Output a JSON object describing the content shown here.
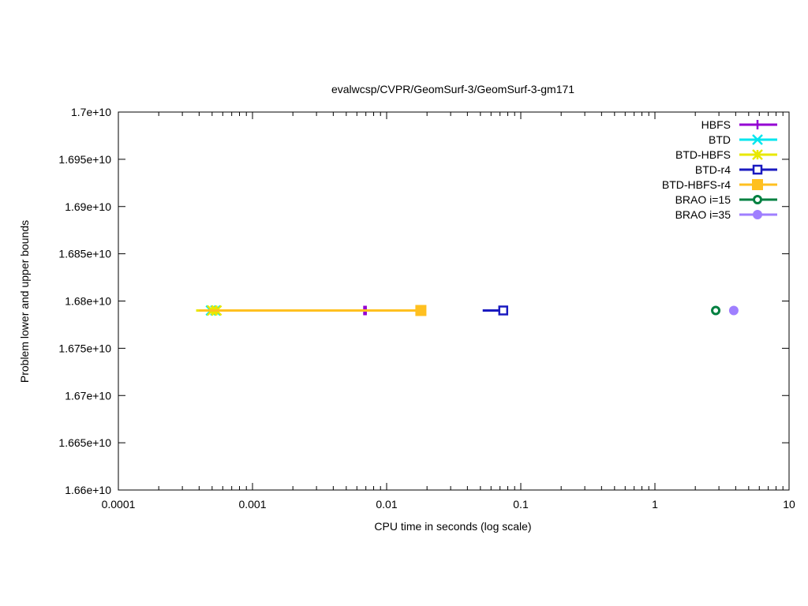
{
  "chart_data": {
    "type": "scatter",
    "title": "evalwcsp/CVPR/GeomSurf-3/GeomSurf-3-gm171",
    "xlabel": "CPU time in seconds (log scale)",
    "ylabel": "Problem lower and upper bounds",
    "xscale": "log",
    "xlim": [
      0.0001,
      10
    ],
    "ylim": [
      16600000000.0,
      17000000000.0
    ],
    "grid": false,
    "legend_placement": "top-right",
    "xticks": [
      {
        "v": 0.0001,
        "label": "0.0001"
      },
      {
        "v": 0.001,
        "label": "0.001"
      },
      {
        "v": 0.01,
        "label": "0.01"
      },
      {
        "v": 0.1,
        "label": "0.1"
      },
      {
        "v": 1,
        "label": "1"
      },
      {
        "v": 10,
        "label": "10"
      }
    ],
    "yticks": [
      {
        "v": 16600000000.0,
        "label": "1.66e+10"
      },
      {
        "v": 16650000000.0,
        "label": "1.665e+10"
      },
      {
        "v": 16700000000.0,
        "label": "1.67e+10"
      },
      {
        "v": 16750000000.0,
        "label": "1.675e+10"
      },
      {
        "v": 16800000000.0,
        "label": "1.68e+10"
      },
      {
        "v": 16850000000.0,
        "label": "1.685e+10"
      },
      {
        "v": 16900000000.0,
        "label": "1.69e+10"
      },
      {
        "v": 16950000000.0,
        "label": "1.695e+10"
      },
      {
        "v": 17000000000.0,
        "label": "1.7e+10"
      }
    ],
    "series": [
      {
        "name": "HBFS",
        "color": "#9400d3",
        "marker": "plus",
        "points": [
          [
            0.0068,
            16790000000.0
          ],
          [
            0.007,
            16790000000.0
          ]
        ],
        "marker_points": [
          [
            0.0068,
            16790000000.0
          ],
          [
            0.007,
            16790000000.0
          ]
        ]
      },
      {
        "name": "BTD",
        "color": "#00e5ee",
        "marker": "cross",
        "points": [
          [
            0.00049,
            16790000000.0
          ],
          [
            0.00053,
            16790000000.0
          ]
        ],
        "marker_points": [
          [
            0.00049,
            16790000000.0
          ],
          [
            0.00053,
            16790000000.0
          ]
        ]
      },
      {
        "name": "BTD-HBFS",
        "color": "#e8e800",
        "marker": "star",
        "points": [
          [
            0.00038,
            16790000000.0
          ],
          [
            0.00052,
            16790000000.0
          ]
        ],
        "marker_points": [
          [
            0.0005,
            16790000000.0
          ],
          [
            0.00054,
            16790000000.0
          ]
        ]
      },
      {
        "name": "BTD-r4",
        "color": "#1a1ac0",
        "marker": "open-square",
        "points": [
          [
            0.052,
            16790000000.0
          ],
          [
            0.074,
            16790000000.0
          ]
        ],
        "marker_points": [
          [
            0.074,
            16790000000.0
          ]
        ]
      },
      {
        "name": "BTD-HBFS-r4",
        "color": "#ffc020",
        "marker": "filled-square",
        "points": [
          [
            0.0004,
            16790000000.0
          ],
          [
            0.018,
            16790000000.0
          ]
        ],
        "marker_points": [
          [
            0.018,
            16790000000.0
          ]
        ]
      },
      {
        "name": "BRAO i=15",
        "color": "#008040",
        "marker": "open-circle",
        "points": [
          [
            2.84,
            16790000000.0
          ]
        ],
        "marker_points": [
          [
            2.84,
            16790000000.0
          ]
        ]
      },
      {
        "name": "BRAO i=35",
        "color": "#9f7fff",
        "marker": "filled-circle",
        "points": [
          [
            3.87,
            16790000000.0
          ]
        ],
        "marker_points": [
          [
            3.87,
            16790000000.0
          ]
        ]
      }
    ]
  }
}
